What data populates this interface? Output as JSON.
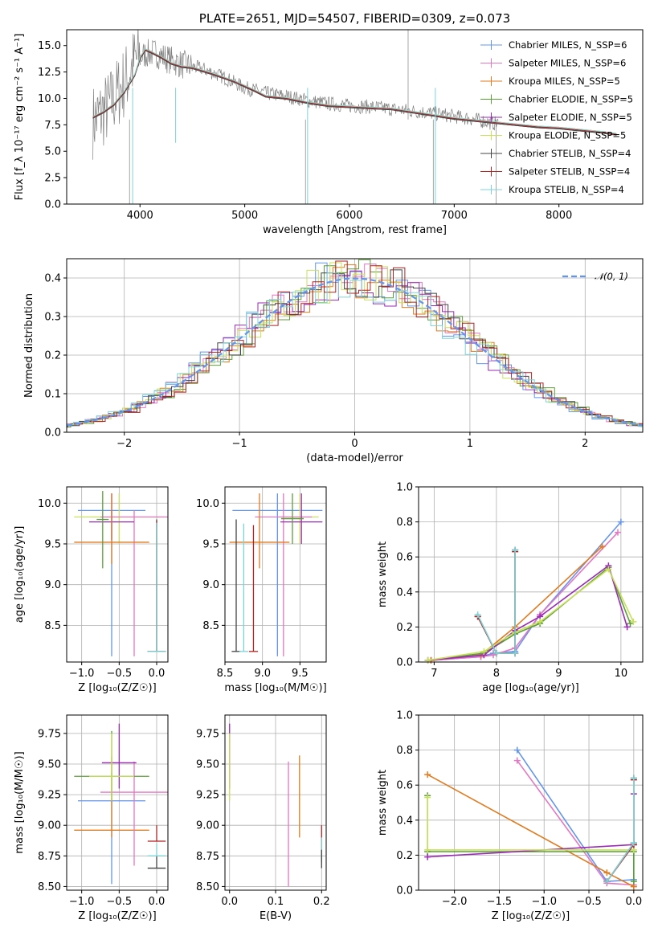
{
  "colors": {
    "chabrier_miles": "#6495ED",
    "salpeter_miles": "#E377C2",
    "kroupa_miles": "#E07B20",
    "chabrier_elodie": "#5C9E3A",
    "salpeter_elodie": "#9A2BB5",
    "kroupa_elodie": "#C8E05A",
    "chabrier_stelib": "#444444",
    "salpeter_stelib": "#B22222",
    "kroupa_stelib": "#7FD3D6",
    "data": "#808080",
    "gauss": "#6495ED"
  },
  "chart_data": [
    {
      "id": "spectrum",
      "type": "line",
      "title": "PLATE=2651, MJD=54507, FIBERID=0309, z=0.073",
      "xlabel": "wavelength [Angstrom, rest frame]",
      "ylabel": "Flux [f_λ 10⁻¹⁷ erg cm⁻² s⁻¹ A⁻¹]",
      "xlim": [
        3300,
        8800
      ],
      "ylim": [
        0,
        16.5
      ],
      "xticks": [
        "4000",
        "5000",
        "6000",
        "7000",
        "8000"
      ],
      "yticks": [
        "0.0",
        "2.5",
        "5.0",
        "7.5",
        "10.0",
        "12.5",
        "15.0"
      ],
      "legend_position": "top-right",
      "legend": [
        "Chabrier MILES, N_SSP=6",
        "Salpeter MILES, N_SSP=6",
        "Kroupa MILES, N_SSP=5",
        "Chabrier ELODIE, N_SSP=5",
        "Salpeter ELODIE, N_SSP=5",
        "Kroupa ELODIE, N_SSP=5",
        "Chabrier STELIB, N_SSP=4",
        "Salpeter STELIB, N_SSP=4",
        "Kroupa STELIB, N_SSP=4"
      ],
      "continuum": {
        "x": [
          3550,
          3700,
          3850,
          3950,
          4050,
          4150,
          4250,
          4400,
          4600,
          4800,
          5000,
          5200,
          5400,
          5600,
          5800,
          6000,
          6200,
          6400,
          6600,
          6800,
          7000,
          7200,
          7400
        ],
        "y": [
          7.8,
          9.2,
          11.5,
          13.5,
          14.2,
          14.3,
          13.8,
          13.2,
          12.8,
          12.0,
          11.0,
          10.5,
          10.2,
          9.8,
          9.5,
          9.3,
          9.2,
          9.0,
          8.8,
          8.6,
          8.3,
          8.0,
          7.6
        ]
      },
      "model_x": [
        3550,
        3650,
        3750,
        3850,
        3950,
        4000,
        4050,
        4100,
        4200,
        4300,
        4400,
        4500,
        4700,
        4900,
        5100,
        5200,
        5400,
        5600,
        5800,
        6000,
        6200,
        6400,
        6600,
        6800,
        7000,
        7200,
        7400,
        7600,
        7800,
        8000,
        8200,
        8400,
        8550
      ],
      "model_y": [
        8.2,
        8.7,
        9.4,
        10.6,
        12.2,
        13.8,
        14.6,
        14.4,
        13.9,
        13.3,
        13.0,
        12.9,
        12.3,
        11.6,
        10.7,
        10.2,
        10.0,
        9.6,
        9.3,
        9.2,
        9.1,
        9.0,
        8.7,
        8.4,
        8.1,
        7.9,
        7.7,
        7.5,
        7.3,
        7.2,
        7.0,
        6.8,
        6.6
      ]
    },
    {
      "id": "residuals",
      "type": "step",
      "xlabel": "(data-model)/error",
      "ylabel": "Normed distribution",
      "xlim": [
        -2.5,
        2.5
      ],
      "ylim": [
        0,
        0.45
      ],
      "xticks": [
        "−2",
        "−1",
        "0",
        "1",
        "2"
      ],
      "yticks": [
        "0.0",
        "0.1",
        "0.2",
        "0.3",
        "0.4"
      ],
      "legend": [
        "𝒩(0, 1)"
      ],
      "legend_position": "top-right",
      "bin_width": 0.1
    },
    {
      "id": "age_vs_Z",
      "type": "errorbar",
      "xlabel": "Z [log₁₀(Z/Z☉)]",
      "ylabel": "age  [log₁₀(age/yr)]",
      "xlim": [
        -1.2,
        0.15
      ],
      "ylim": [
        8.05,
        10.2
      ],
      "xticks": [
        "−1.0",
        "−0.5",
        "0.0"
      ],
      "yticks": [
        "8.5",
        "9.0",
        "9.5",
        "10.0"
      ],
      "points": [
        {
          "c": "chabrier_miles",
          "x": -0.6,
          "y": 9.91,
          "xe": 0.45,
          "ye": [
            9.91,
            8.12
          ]
        },
        {
          "c": "kroupa_elodie",
          "x": -0.5,
          "y": 9.83,
          "xe": 0.6,
          "ye": [
            10.12,
            9.5
          ]
        },
        {
          "c": "salpeter_miles",
          "x": -0.3,
          "y": 9.83,
          "xe": 0.45,
          "ye": [
            9.91,
            8.12
          ]
        },
        {
          "c": "salpeter_elodie",
          "x": -0.6,
          "y": 9.77,
          "xe": 0.3,
          "ye": [
            10.12,
            9.55
          ]
        },
        {
          "c": "kroupa_miles",
          "x": -0.6,
          "y": 9.52,
          "xe": 0.5,
          "ye": [
            10.12,
            9.25
          ]
        },
        {
          "c": "chabrier_elodie",
          "x": -0.72,
          "y": 9.8,
          "xe": 0.08,
          "ye": [
            10.15,
            9.2
          ]
        },
        {
          "c": "chabrier_stelib",
          "x": 0.0,
          "y": 8.18,
          "xe": 0.12,
          "ye": [
            9.8,
            8.18
          ]
        },
        {
          "c": "salpeter_stelib",
          "x": 0.0,
          "y": 8.18,
          "xe": 0.12,
          "ye": [
            9.78,
            8.18
          ]
        },
        {
          "c": "kroupa_stelib",
          "x": 0.0,
          "y": 8.18,
          "xe": 0.12,
          "ye": [
            9.76,
            8.18
          ]
        }
      ]
    },
    {
      "id": "age_vs_mass",
      "type": "errorbar",
      "xlabel": "mass [log₁₀(M/M☉)]",
      "ylabel": "",
      "xlim": [
        8.5,
        9.85
      ],
      "ylim": [
        8.05,
        10.2
      ],
      "xticks": [
        "8.5",
        "9.0",
        "9.5"
      ],
      "yticks": [
        "8.5",
        "9.0",
        "9.5",
        "10.0"
      ],
      "points": [
        {
          "c": "chabrier_miles",
          "x": 9.2,
          "y": 9.91,
          "xe": 0.6,
          "ye": [
            10.12,
            8.12
          ]
        },
        {
          "c": "kroupa_elodie",
          "x": 9.5,
          "y": 9.83,
          "xe": 0.25,
          "ye": [
            10.12,
            9.5
          ]
        },
        {
          "c": "salpeter_miles",
          "x": 9.28,
          "y": 9.83,
          "xe": 0.38,
          "ye": [
            10.12,
            8.12
          ]
        },
        {
          "c": "salpeter_elodie",
          "x": 9.52,
          "y": 9.77,
          "xe": 0.28,
          "ye": [
            10.12,
            9.5
          ]
        },
        {
          "c": "kroupa_miles",
          "x": 8.96,
          "y": 9.52,
          "xe": 0.4,
          "ye": [
            10.12,
            9.2
          ]
        },
        {
          "c": "chabrier_elodie",
          "x": 9.4,
          "y": 9.81,
          "xe": 0.15,
          "ye": [
            10.12,
            9.5
          ]
        },
        {
          "c": "chabrier_stelib",
          "x": 8.65,
          "y": 8.18,
          "xe": 0.06,
          "ye": [
            9.8,
            8.18
          ]
        },
        {
          "c": "salpeter_stelib",
          "x": 8.88,
          "y": 8.18,
          "xe": 0.06,
          "ye": [
            9.73,
            8.18
          ]
        },
        {
          "c": "kroupa_stelib",
          "x": 8.75,
          "y": 8.18,
          "xe": 0.06,
          "ye": [
            9.75,
            8.18
          ]
        }
      ]
    },
    {
      "id": "mass_weight_vs_age",
      "type": "line",
      "xlabel": "age  [log₁₀(age/yr)]",
      "ylabel": "mass weight",
      "xlim": [
        6.75,
        10.35
      ],
      "ylim": [
        0,
        1.0
      ],
      "xticks": [
        "7",
        "8",
        "9",
        "10"
      ],
      "yticks": [
        "0.0",
        "0.2",
        "0.4",
        "0.6",
        "0.8",
        "1.0"
      ],
      "series": [
        {
          "c": "chabrier_miles",
          "x": [
            6.95,
            7.75,
            7.95,
            8.3,
            8.7,
            10.0
          ],
          "y": [
            0.01,
            0.03,
            0.05,
            0.06,
            0.27,
            0.8
          ]
        },
        {
          "c": "salpeter_miles",
          "x": [
            6.95,
            7.75,
            7.95,
            8.3,
            8.7,
            9.95
          ],
          "y": [
            0.01,
            0.03,
            0.04,
            0.08,
            0.27,
            0.74
          ]
        },
        {
          "c": "kroupa_miles",
          "x": [
            6.95,
            7.75,
            8.3,
            9.7
          ],
          "y": [
            0.01,
            0.04,
            0.2,
            0.66
          ]
        },
        {
          "c": "chabrier_elodie",
          "x": [
            6.9,
            7.8,
            8.3,
            8.7,
            9.8,
            10.15
          ],
          "y": [
            0.01,
            0.05,
            0.16,
            0.22,
            0.54,
            0.22
          ]
        },
        {
          "c": "salpeter_elodie",
          "x": [
            6.9,
            7.8,
            8.3,
            8.7,
            9.8,
            10.1
          ],
          "y": [
            0.01,
            0.04,
            0.18,
            0.26,
            0.55,
            0.2
          ]
        },
        {
          "c": "kroupa_elodie",
          "x": [
            6.9,
            7.8,
            8.3,
            8.7,
            9.8,
            10.2
          ],
          "y": [
            0.01,
            0.06,
            0.17,
            0.23,
            0.53,
            0.23
          ]
        },
        {
          "c": "chabrier_stelib",
          "x": [
            7.7,
            8.0,
            8.3,
            8.3
          ],
          "y": [
            0.26,
            0.05,
            0.05,
            0.64
          ]
        },
        {
          "c": "salpeter_stelib",
          "x": [
            7.7,
            8.0,
            8.3,
            8.3
          ],
          "y": [
            0.26,
            0.05,
            0.05,
            0.63
          ]
        },
        {
          "c": "kroupa_stelib",
          "x": [
            7.7,
            8.0,
            8.3,
            8.3
          ],
          "y": [
            0.27,
            0.05,
            0.05,
            0.64
          ]
        }
      ]
    },
    {
      "id": "mass_vs_Z",
      "type": "errorbar",
      "xlabel": "Z [log₁₀(Z/Z☉)]",
      "ylabel": "mass [log₁₀(M/M☉)]",
      "xlim": [
        -1.2,
        0.15
      ],
      "ylim": [
        8.47,
        9.9
      ],
      "xticks": [
        "−1.0",
        "−0.5",
        "0.0"
      ],
      "yticks": [
        "8.50",
        "8.75",
        "9.00",
        "9.25",
        "9.50",
        "9.75"
      ],
      "points": [
        {
          "c": "chabrier_miles",
          "x": -0.6,
          "y": 9.2,
          "xe": 0.45,
          "ye": [
            9.43,
            8.52
          ]
        },
        {
          "c": "kroupa_miles",
          "x": -0.6,
          "y": 8.96,
          "xe": 0.5,
          "ye": [
            9.56,
            8.9
          ]
        },
        {
          "c": "salpeter_miles",
          "x": -0.3,
          "y": 9.27,
          "xe": 0.45,
          "ye": [
            9.52,
            8.67
          ]
        },
        {
          "c": "salpeter_elodie",
          "x": -0.5,
          "y": 9.51,
          "xe": 0.23,
          "ye": [
            9.83,
            9.3
          ]
        },
        {
          "c": "chabrier_elodie",
          "x": -0.6,
          "y": 9.4,
          "xe": 0.5,
          "ye": [
            9.77,
            9.2
          ]
        },
        {
          "c": "kroupa_elodie",
          "x": -0.6,
          "y": 9.4,
          "xe": 0.3,
          "ye": [
            9.75,
            9.2
          ]
        },
        {
          "c": "chabrier_stelib",
          "x": 0.0,
          "y": 8.65,
          "xe": 0.12,
          "ye": [
            8.75,
            8.65
          ]
        },
        {
          "c": "salpeter_stelib",
          "x": 0.0,
          "y": 8.87,
          "xe": 0.12,
          "ye": [
            9.0,
            8.87
          ]
        },
        {
          "c": "kroupa_stelib",
          "x": 0.0,
          "y": 8.75,
          "xe": 0.12,
          "ye": [
            8.85,
            8.75
          ]
        }
      ]
    },
    {
      "id": "mass_vs_ebv",
      "type": "errorbar",
      "xlabel": "E(B-V)",
      "ylabel": "",
      "xlim": [
        -0.01,
        0.21
      ],
      "ylim": [
        8.47,
        9.9
      ],
      "xticks": [
        "0.0",
        "0.1",
        "0.2"
      ],
      "yticks": [
        "8.50",
        "8.75",
        "9.00",
        "9.25",
        "9.50",
        "9.75"
      ],
      "points": [
        {
          "c": "salpeter_elodie",
          "x": 0.0,
          "y": 9.55,
          "ye": [
            9.83,
            9.3
          ]
        },
        {
          "c": "kroupa_elodie",
          "x": 0.0,
          "y": 9.5,
          "ye": [
            9.75,
            9.2
          ]
        },
        {
          "c": "salpeter_miles",
          "x": 0.128,
          "y": 9.0,
          "ye": [
            9.52,
            8.5
          ]
        },
        {
          "c": "kroupa_miles",
          "x": 0.152,
          "y": 9.2,
          "ye": [
            9.57,
            8.9
          ]
        },
        {
          "c": "salpeter_stelib",
          "x": 0.2,
          "y": 8.85,
          "ye": [
            9.0,
            8.7
          ]
        },
        {
          "c": "kroupa_stelib",
          "x": 0.2,
          "y": 8.8,
          "ye": [
            8.9,
            8.7
          ]
        },
        {
          "c": "chabrier_stelib",
          "x": 0.2,
          "y": 8.72,
          "ye": [
            8.8,
            8.65
          ]
        }
      ]
    },
    {
      "id": "mass_weight_vs_Z",
      "type": "line",
      "xlabel": "Z [log₁₀(Z/Z☉)]",
      "ylabel": "mass weight",
      "xlim": [
        -2.4,
        0.1
      ],
      "ylim": [
        0,
        1.0
      ],
      "xticks": [
        "−2.0",
        "−1.5",
        "−1.0",
        "−0.5",
        "0.0"
      ],
      "yticks": [
        "0.0",
        "0.2",
        "0.4",
        "0.6",
        "0.8",
        "1.0"
      ],
      "series": [
        {
          "c": "chabrier_miles",
          "x": [
            -1.3,
            -0.3,
            0.0,
            0.0
          ],
          "y": [
            0.8,
            0.05,
            0.06,
            0.26
          ]
        },
        {
          "c": "salpeter_miles",
          "x": [
            -1.3,
            -0.3,
            0.0
          ],
          "y": [
            0.74,
            0.04,
            0.03
          ]
        },
        {
          "c": "kroupa_miles",
          "x": [
            -2.3,
            -0.3,
            0.0
          ],
          "y": [
            0.66,
            0.1,
            0.02
          ]
        },
        {
          "c": "chabrier_elodie",
          "x": [
            -2.3,
            -2.3,
            0.0,
            0.0
          ],
          "y": [
            0.54,
            0.22,
            0.22,
            0.05
          ]
        },
        {
          "c": "salpeter_elodie",
          "x": [
            -2.3,
            0.0,
            0.0
          ],
          "y": [
            0.19,
            0.26,
            0.55
          ]
        },
        {
          "c": "kroupa_elodie",
          "x": [
            -2.3,
            -2.3,
            0.0
          ],
          "y": [
            0.53,
            0.23,
            0.23
          ]
        },
        {
          "c": "chabrier_stelib",
          "x": [
            -0.3,
            0.0,
            0.0
          ],
          "y": [
            0.05,
            0.27,
            0.64
          ]
        },
        {
          "c": "salpeter_stelib",
          "x": [
            -0.3,
            0.0,
            0.0
          ],
          "y": [
            0.05,
            0.26,
            0.63
          ]
        },
        {
          "c": "kroupa_stelib",
          "x": [
            -0.3,
            0.0,
            0.0
          ],
          "y": [
            0.05,
            0.27,
            0.64
          ]
        }
      ]
    }
  ]
}
